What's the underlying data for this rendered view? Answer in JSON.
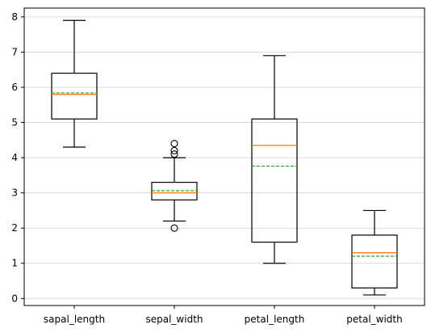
{
  "chart_data": {
    "type": "box",
    "title": "",
    "xlabel": "",
    "ylabel": "",
    "categories": [
      "sapal_length",
      "sepal_width",
      "petal_length",
      "petal_width"
    ],
    "ylim": [
      -0.2,
      8.25
    ],
    "yticks": [
      0,
      1,
      2,
      3,
      4,
      5,
      6,
      7,
      8
    ],
    "grid": {
      "y": true,
      "x": false
    },
    "series": [
      {
        "category": "sapal_length",
        "whisker_low": 4.3,
        "q1": 5.1,
        "median": 5.8,
        "q3": 6.4,
        "whisker_high": 7.9,
        "mean": 5.84,
        "outliers": []
      },
      {
        "category": "sepal_width",
        "whisker_low": 2.2,
        "q1": 2.8,
        "median": 3.0,
        "q3": 3.3,
        "whisker_high": 4.0,
        "mean": 3.06,
        "outliers": [
          2.0,
          4.1,
          4.2,
          4.4
        ]
      },
      {
        "category": "petal_length",
        "whisker_low": 1.0,
        "q1": 1.6,
        "median": 4.35,
        "q3": 5.1,
        "whisker_high": 6.9,
        "mean": 3.76,
        "outliers": []
      },
      {
        "category": "petal_width",
        "whisker_low": 0.1,
        "q1": 0.3,
        "median": 1.3,
        "q3": 1.8,
        "whisker_high": 2.5,
        "mean": 1.2,
        "outliers": []
      }
    ],
    "colors": {
      "box": "#000000",
      "median": "#ff7f0e",
      "mean": "#2ca02c",
      "grid": "#d9d9d9"
    }
  }
}
